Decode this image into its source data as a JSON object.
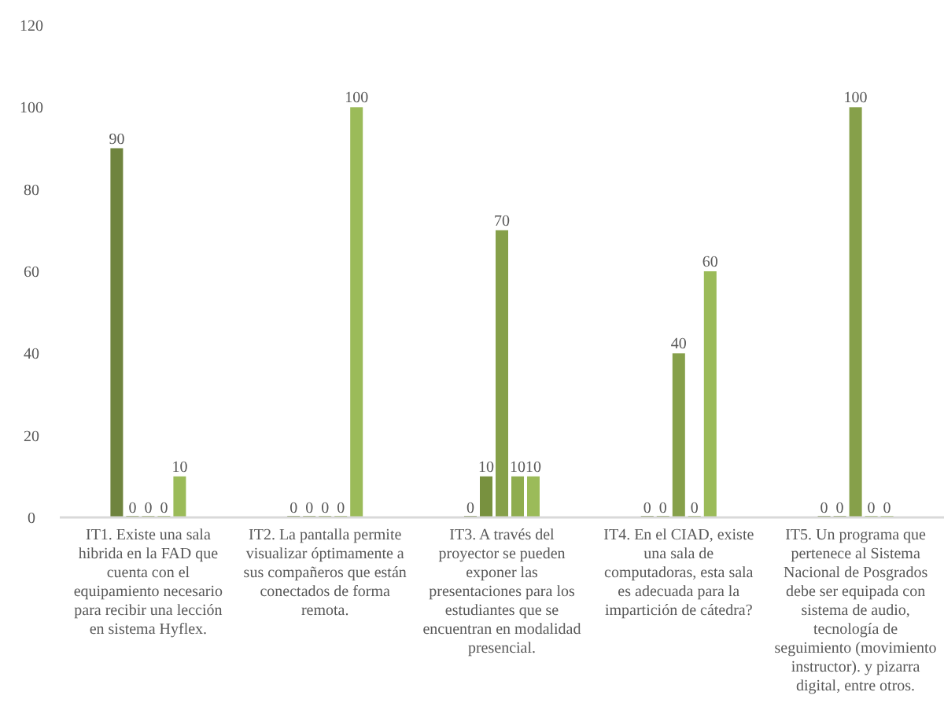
{
  "chart_data": {
    "type": "bar",
    "categories": [
      "IT1. Existe una sala hibrida en la FAD que cuenta con el equipamiento necesario para recibir una lección en sistema Hyflex.",
      "IT2. La pantalla permite visualizar óptimamente a sus compañeros que están conectados de forma remota.",
      "IT3. A través del proyector se pueden exponer las presentaciones para los estudiantes que se encuentran en modalidad presencial.",
      "IT4. En el CIAD, existe una sala de computadoras, esta sala es adecuada para la impartición de cátedra?",
      "IT5. Un programa que pertenece al Sistema Nacional de Posgrados debe ser equipada con sistema de audio, tecnología de seguimiento (movimiento instructor). y pizarra digital, entre otros."
    ],
    "series": [
      {
        "color": "#6f843e",
        "values": [
          90,
          0,
          0,
          0,
          0
        ]
      },
      {
        "color": "#78913f",
        "values": [
          0,
          0,
          10,
          0,
          0
        ]
      },
      {
        "color": "#86a04a",
        "values": [
          0,
          0,
          70,
          40,
          100
        ]
      },
      {
        "color": "#8fad4f",
        "values": [
          0,
          0,
          10,
          0,
          0
        ]
      },
      {
        "color": "#9bbb59",
        "values": [
          10,
          100,
          10,
          60,
          0
        ]
      }
    ],
    "ylim": [
      0,
      120
    ],
    "yticks": [
      0,
      20,
      40,
      60,
      80,
      100,
      120
    ],
    "data_labels": true,
    "grid": false,
    "legend": false
  }
}
